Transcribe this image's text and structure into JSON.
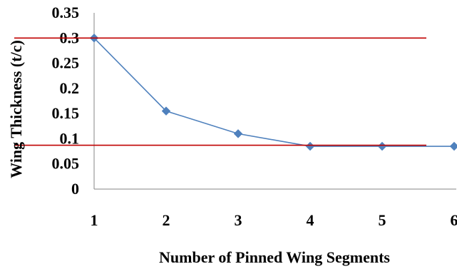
{
  "chart_data": {
    "type": "line",
    "title": "",
    "xlabel": "Number of Pinned Wing Segments",
    "ylabel": "Wing Thickness (t/c)",
    "x": [
      1,
      2,
      3,
      4,
      5,
      6
    ],
    "xticks": [
      "1",
      "2",
      "3",
      "4",
      "5",
      "6"
    ],
    "yticks": [
      "0",
      "0.05",
      "0.1",
      "0.15",
      "0.2",
      "0.25",
      "0.3",
      "0.35"
    ],
    "ylim": [
      0,
      0.35
    ],
    "series": [
      {
        "values": [
          0.3,
          0.155,
          0.11,
          0.085,
          0.085,
          0.085
        ],
        "color": "#4f81bd",
        "marker": "diamond"
      }
    ],
    "reference_lines": [
      {
        "y": 0.3,
        "color": "#c00000"
      },
      {
        "y": 0.087,
        "color": "#c00000"
      }
    ],
    "grid": false,
    "legend": "none"
  }
}
